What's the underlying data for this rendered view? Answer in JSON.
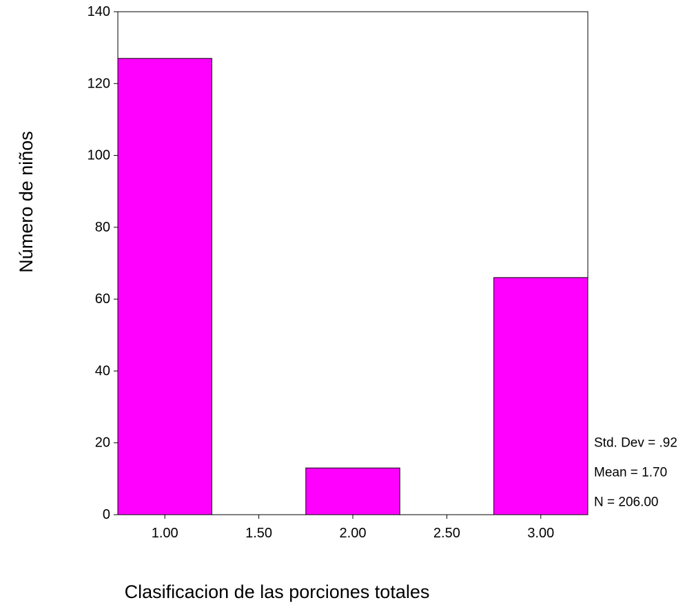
{
  "chart_data": {
    "type": "bar",
    "x": [
      1.0,
      2.0,
      3.0
    ],
    "values": [
      127,
      13,
      66
    ],
    "bar_width": 0.5,
    "xlim": [
      0.75,
      3.25
    ],
    "ylim": [
      0,
      140
    ],
    "xticks": [
      1.0,
      1.5,
      2.0,
      2.5,
      3.0
    ],
    "xtick_labels": [
      "1.00",
      "1.50",
      "2.00",
      "2.50",
      "3.00"
    ],
    "yticks": [
      0,
      20,
      40,
      60,
      80,
      100,
      120,
      140
    ],
    "ytick_labels": [
      "0",
      "20",
      "40",
      "60",
      "80",
      "100",
      "120",
      "140"
    ],
    "xlabel": "Clasificacion de las porciones totales",
    "ylabel": "Número de niños",
    "title": "",
    "grid": false,
    "bar_color": "#ff00ff",
    "stats": [
      {
        "label": "Std. Dev = .92"
      },
      {
        "label": "Mean = 1.70"
      },
      {
        "label": "N = 206.00"
      }
    ]
  }
}
